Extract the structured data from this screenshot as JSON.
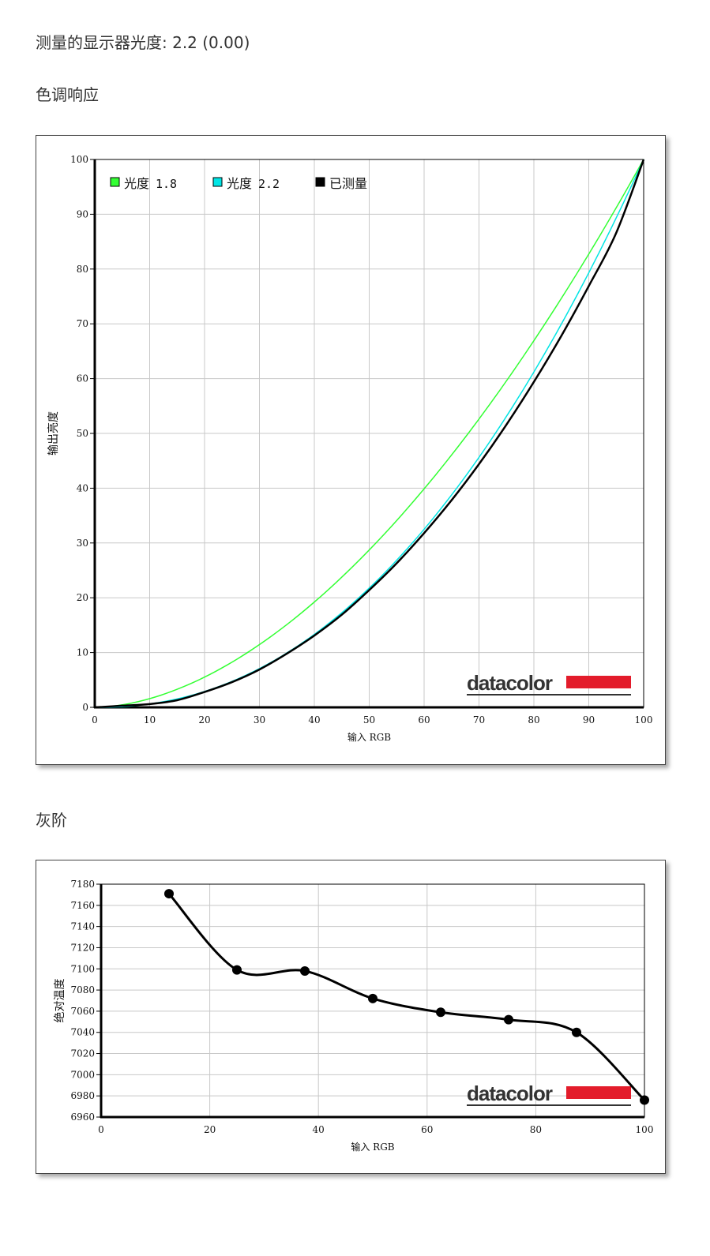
{
  "header": {
    "gamma_label": "测量的显示器光度: 2.2 (0.00)"
  },
  "sections": {
    "tone": "色调响应",
    "gray": "灰阶"
  },
  "logo_text": "datacolor",
  "colors": {
    "gamma18": "#33ff33",
    "gamma22": "#00e5e5",
    "measured": "#000000",
    "logo_red": "#e31c2b",
    "grid": "#c8c8c8"
  },
  "chart_data": [
    {
      "type": "line",
      "xlabel": "输入 RGB",
      "ylabel": "输出亮度",
      "xlim": [
        0,
        100
      ],
      "ylim": [
        0,
        100
      ],
      "xticks": [
        0,
        10,
        20,
        30,
        40,
        50,
        60,
        70,
        80,
        90,
        100
      ],
      "yticks": [
        0,
        10,
        20,
        30,
        40,
        50,
        60,
        70,
        80,
        90,
        100
      ],
      "grid": true,
      "legend_placement": "top-left",
      "legend": [
        {
          "prefix": "光度",
          "num": "1.8"
        },
        {
          "prefix": "光度",
          "num": "2.2"
        },
        {
          "prefix": "已测量",
          "num": ""
        }
      ],
      "series": [
        {
          "name": "光度 1.8",
          "gamma": 1.8
        },
        {
          "name": "光度 2.2",
          "gamma": 2.2
        },
        {
          "name": "已测量",
          "x": [
            0,
            5,
            10,
            15,
            20,
            25,
            30,
            35,
            40,
            45,
            50,
            55,
            60,
            65,
            70,
            75,
            80,
            85,
            90,
            95,
            100
          ],
          "y": [
            0,
            0.3,
            0.6,
            1.3,
            2.8,
            4.6,
            6.9,
            9.8,
            13.1,
            16.9,
            21.4,
            26.3,
            31.8,
            37.8,
            44.4,
            51.6,
            59.4,
            67.8,
            76.9,
            86.6,
            100
          ]
        }
      ]
    },
    {
      "type": "line",
      "xlabel": "输入 RGB",
      "ylabel": "绝对温度",
      "xlim": [
        0,
        100
      ],
      "ylim": [
        6960,
        7180
      ],
      "xticks": [
        0,
        20,
        40,
        60,
        80,
        100
      ],
      "yticks": [
        6960,
        6980,
        7000,
        7020,
        7040,
        7060,
        7080,
        7100,
        7120,
        7140,
        7160,
        7180
      ],
      "grid": true,
      "series": [
        {
          "x": [
            12.5,
            25,
            37.5,
            50,
            62.5,
            75,
            87.5,
            100
          ],
          "y": [
            7171,
            7099,
            7098,
            7072,
            7059,
            7052,
            7040,
            6976
          ]
        }
      ]
    }
  ]
}
